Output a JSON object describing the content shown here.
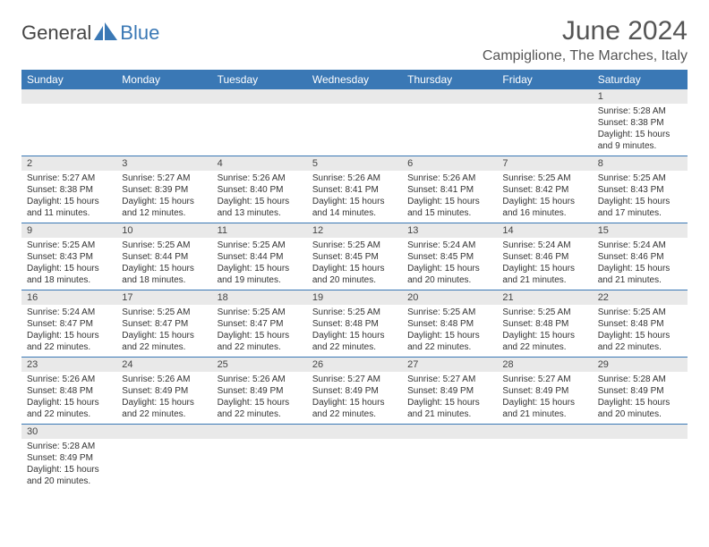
{
  "logo": {
    "part1": "General",
    "part2": "Blue"
  },
  "title": "June 2024",
  "location": "Campiglione, The Marches, Italy",
  "colors": {
    "header_bg": "#3a78b5",
    "header_fg": "#ffffff",
    "daynum_bg": "#e9e9e9",
    "row_border": "#3a78b5",
    "text": "#333333"
  },
  "daysOfWeek": [
    "Sunday",
    "Monday",
    "Tuesday",
    "Wednesday",
    "Thursday",
    "Friday",
    "Saturday"
  ],
  "weeks": [
    [
      null,
      null,
      null,
      null,
      null,
      null,
      {
        "n": "1",
        "sunrise": "5:28 AM",
        "sunset": "8:38 PM",
        "daylight": "15 hours and 9 minutes."
      }
    ],
    [
      {
        "n": "2",
        "sunrise": "5:27 AM",
        "sunset": "8:38 PM",
        "daylight": "15 hours and 11 minutes."
      },
      {
        "n": "3",
        "sunrise": "5:27 AM",
        "sunset": "8:39 PM",
        "daylight": "15 hours and 12 minutes."
      },
      {
        "n": "4",
        "sunrise": "5:26 AM",
        "sunset": "8:40 PM",
        "daylight": "15 hours and 13 minutes."
      },
      {
        "n": "5",
        "sunrise": "5:26 AM",
        "sunset": "8:41 PM",
        "daylight": "15 hours and 14 minutes."
      },
      {
        "n": "6",
        "sunrise": "5:26 AM",
        "sunset": "8:41 PM",
        "daylight": "15 hours and 15 minutes."
      },
      {
        "n": "7",
        "sunrise": "5:25 AM",
        "sunset": "8:42 PM",
        "daylight": "15 hours and 16 minutes."
      },
      {
        "n": "8",
        "sunrise": "5:25 AM",
        "sunset": "8:43 PM",
        "daylight": "15 hours and 17 minutes."
      }
    ],
    [
      {
        "n": "9",
        "sunrise": "5:25 AM",
        "sunset": "8:43 PM",
        "daylight": "15 hours and 18 minutes."
      },
      {
        "n": "10",
        "sunrise": "5:25 AM",
        "sunset": "8:44 PM",
        "daylight": "15 hours and 18 minutes."
      },
      {
        "n": "11",
        "sunrise": "5:25 AM",
        "sunset": "8:44 PM",
        "daylight": "15 hours and 19 minutes."
      },
      {
        "n": "12",
        "sunrise": "5:25 AM",
        "sunset": "8:45 PM",
        "daylight": "15 hours and 20 minutes."
      },
      {
        "n": "13",
        "sunrise": "5:24 AM",
        "sunset": "8:45 PM",
        "daylight": "15 hours and 20 minutes."
      },
      {
        "n": "14",
        "sunrise": "5:24 AM",
        "sunset": "8:46 PM",
        "daylight": "15 hours and 21 minutes."
      },
      {
        "n": "15",
        "sunrise": "5:24 AM",
        "sunset": "8:46 PM",
        "daylight": "15 hours and 21 minutes."
      }
    ],
    [
      {
        "n": "16",
        "sunrise": "5:24 AM",
        "sunset": "8:47 PM",
        "daylight": "15 hours and 22 minutes."
      },
      {
        "n": "17",
        "sunrise": "5:25 AM",
        "sunset": "8:47 PM",
        "daylight": "15 hours and 22 minutes."
      },
      {
        "n": "18",
        "sunrise": "5:25 AM",
        "sunset": "8:47 PM",
        "daylight": "15 hours and 22 minutes."
      },
      {
        "n": "19",
        "sunrise": "5:25 AM",
        "sunset": "8:48 PM",
        "daylight": "15 hours and 22 minutes."
      },
      {
        "n": "20",
        "sunrise": "5:25 AM",
        "sunset": "8:48 PM",
        "daylight": "15 hours and 22 minutes."
      },
      {
        "n": "21",
        "sunrise": "5:25 AM",
        "sunset": "8:48 PM",
        "daylight": "15 hours and 22 minutes."
      },
      {
        "n": "22",
        "sunrise": "5:25 AM",
        "sunset": "8:48 PM",
        "daylight": "15 hours and 22 minutes."
      }
    ],
    [
      {
        "n": "23",
        "sunrise": "5:26 AM",
        "sunset": "8:48 PM",
        "daylight": "15 hours and 22 minutes."
      },
      {
        "n": "24",
        "sunrise": "5:26 AM",
        "sunset": "8:49 PM",
        "daylight": "15 hours and 22 minutes."
      },
      {
        "n": "25",
        "sunrise": "5:26 AM",
        "sunset": "8:49 PM",
        "daylight": "15 hours and 22 minutes."
      },
      {
        "n": "26",
        "sunrise": "5:27 AM",
        "sunset": "8:49 PM",
        "daylight": "15 hours and 22 minutes."
      },
      {
        "n": "27",
        "sunrise": "5:27 AM",
        "sunset": "8:49 PM",
        "daylight": "15 hours and 21 minutes."
      },
      {
        "n": "28",
        "sunrise": "5:27 AM",
        "sunset": "8:49 PM",
        "daylight": "15 hours and 21 minutes."
      },
      {
        "n": "29",
        "sunrise": "5:28 AM",
        "sunset": "8:49 PM",
        "daylight": "15 hours and 20 minutes."
      }
    ],
    [
      {
        "n": "30",
        "sunrise": "5:28 AM",
        "sunset": "8:49 PM",
        "daylight": "15 hours and 20 minutes."
      },
      null,
      null,
      null,
      null,
      null,
      null
    ]
  ],
  "labels": {
    "sunrise": "Sunrise:",
    "sunset": "Sunset:",
    "daylight": "Daylight:"
  }
}
